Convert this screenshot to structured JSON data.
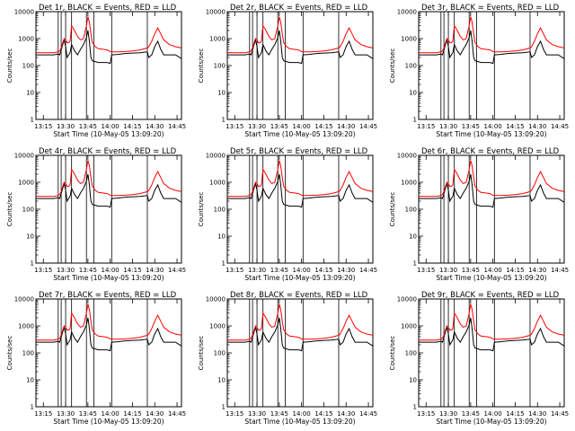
{
  "colors": {
    "background": "#ffffff",
    "events": "#000000",
    "lld": "#ff0000",
    "frame": "#000000"
  },
  "chart_data": [
    {
      "type": "line",
      "title": "Det 1r, BLACK = Events, RED = LLD",
      "det": "1r",
      "xlabel": "Start Time (10-May-05 13:09:20)",
      "ylabel": "Counts/sec",
      "yscale": "log",
      "ylim": [
        1,
        10000
      ],
      "xlim": [
        "13:10",
        "14:48"
      ],
      "xticks": [
        "13:15",
        "13:30",
        "13:45",
        "14:00",
        "14:15",
        "14:30",
        "14:45"
      ],
      "yticks": [
        "1",
        "10",
        "100",
        "1000",
        "10000"
      ],
      "vlines": [
        "13:25",
        "13:27",
        "13:30",
        "13:34",
        "13:44",
        "13:49",
        "14:01",
        "14:25"
      ],
      "series": [
        {
          "name": "Events",
          "color": "#000000"
        },
        {
          "name": "LLD",
          "color": "#ff0000"
        }
      ]
    },
    {
      "type": "line",
      "title": "Det 2r, BLACK = Events, RED = LLD",
      "det": "2r",
      "xlabel": "Start Time (10-May-05 13:09:20)",
      "ylabel": "Counts/sec",
      "yscale": "log",
      "ylim": [
        1,
        10000
      ],
      "xlim": [
        "13:10",
        "14:48"
      ],
      "xticks": [
        "13:15",
        "13:30",
        "13:45",
        "14:00",
        "14:15",
        "14:30",
        "14:45"
      ],
      "yticks": [
        "1",
        "10",
        "100",
        "1000",
        "10000"
      ],
      "vlines": [
        "13:25",
        "13:27",
        "13:30",
        "13:34",
        "13:44",
        "13:49",
        "14:01",
        "14:25"
      ],
      "series": [
        {
          "name": "Events",
          "color": "#000000"
        },
        {
          "name": "LLD",
          "color": "#ff0000"
        }
      ]
    },
    {
      "type": "line",
      "title": "Det 3r, BLACK = Events, RED = LLD",
      "det": "3r",
      "xlabel": "Start Time (10-May-05 13:09:20)",
      "ylabel": "Counts/sec",
      "yscale": "log",
      "ylim": [
        1,
        10000
      ],
      "xlim": [
        "13:10",
        "14:48"
      ],
      "xticks": [
        "13:15",
        "13:30",
        "13:45",
        "14:00",
        "14:15",
        "14:30",
        "14:45"
      ],
      "yticks": [
        "1",
        "10",
        "100",
        "1000",
        "10000"
      ],
      "vlines": [
        "13:25",
        "13:27",
        "13:30",
        "13:34",
        "13:44",
        "13:49",
        "14:01",
        "14:25"
      ],
      "series": [
        {
          "name": "Events",
          "color": "#000000"
        },
        {
          "name": "LLD",
          "color": "#ff0000"
        }
      ]
    },
    {
      "type": "line",
      "title": "Det 4r, BLACK = Events, RED = LLD",
      "det": "4r",
      "xlabel": "Start Time (10-May-05 13:09:20)",
      "ylabel": "Counts/sec",
      "yscale": "log",
      "ylim": [
        1,
        10000
      ],
      "xlim": [
        "13:10",
        "14:48"
      ],
      "xticks": [
        "13:15",
        "13:30",
        "13:45",
        "14:00",
        "14:15",
        "14:30",
        "14:45"
      ],
      "yticks": [
        "1",
        "10",
        "100",
        "1000",
        "10000"
      ],
      "vlines": [
        "13:25",
        "13:27",
        "13:30",
        "13:34",
        "13:44",
        "13:49",
        "14:01",
        "14:25"
      ],
      "series": [
        {
          "name": "Events",
          "color": "#000000"
        },
        {
          "name": "LLD",
          "color": "#ff0000"
        }
      ]
    },
    {
      "type": "line",
      "title": "Det 5r, BLACK = Events, RED = LLD",
      "det": "5r",
      "xlabel": "Start Time (10-May-05 13:09:20)",
      "ylabel": "Counts/sec",
      "yscale": "log",
      "ylim": [
        1,
        10000
      ],
      "xlim": [
        "13:10",
        "14:48"
      ],
      "xticks": [
        "13:15",
        "13:30",
        "13:45",
        "14:00",
        "14:15",
        "14:30",
        "14:45"
      ],
      "yticks": [
        "1",
        "10",
        "100",
        "1000",
        "10000"
      ],
      "vlines": [
        "13:25",
        "13:27",
        "13:30",
        "13:34",
        "13:44",
        "13:49",
        "14:01",
        "14:25"
      ],
      "series": [
        {
          "name": "Events",
          "color": "#000000"
        },
        {
          "name": "LLD",
          "color": "#ff0000"
        }
      ]
    },
    {
      "type": "line",
      "title": "Det 6r, BLACK = Events, RED = LLD",
      "det": "6r",
      "xlabel": "Start Time (10-May-05 13:09:20)",
      "ylabel": "Counts/sec",
      "yscale": "log",
      "ylim": [
        1,
        10000
      ],
      "xlim": [
        "13:10",
        "14:48"
      ],
      "xticks": [
        "13:15",
        "13:30",
        "13:45",
        "14:00",
        "14:15",
        "14:30",
        "14:45"
      ],
      "yticks": [
        "1",
        "10",
        "100",
        "1000",
        "10000"
      ],
      "vlines": [
        "13:25",
        "13:27",
        "13:30",
        "13:34",
        "13:44",
        "13:49",
        "14:01",
        "14:25"
      ],
      "series": [
        {
          "name": "Events",
          "color": "#000000"
        },
        {
          "name": "LLD",
          "color": "#ff0000"
        }
      ]
    },
    {
      "type": "line",
      "title": "Det 7r, BLACK = Events, RED = LLD",
      "det": "7r",
      "xlabel": "Start Time (10-May-05 13:09:20)",
      "ylabel": "Counts/sec",
      "yscale": "log",
      "ylim": [
        1,
        10000
      ],
      "xlim": [
        "13:10",
        "14:48"
      ],
      "xticks": [
        "13:15",
        "13:30",
        "13:45",
        "14:00",
        "14:15",
        "14:30",
        "14:45"
      ],
      "yticks": [
        "1",
        "10",
        "100",
        "1000",
        "10000"
      ],
      "vlines": [
        "13:25",
        "13:27",
        "13:30",
        "13:34",
        "13:44",
        "13:49",
        "14:01",
        "14:25"
      ],
      "series": [
        {
          "name": "Events",
          "color": "#000000"
        },
        {
          "name": "LLD",
          "color": "#ff0000"
        }
      ]
    },
    {
      "type": "line",
      "title": "Det 8r, BLACK = Events, RED = LLD",
      "det": "8r",
      "xlabel": "Start Time (10-May-05 13:09:20)",
      "ylabel": "Counts/sec",
      "yscale": "log",
      "ylim": [
        1,
        10000
      ],
      "xlim": [
        "13:10",
        "14:48"
      ],
      "xticks": [
        "13:15",
        "13:30",
        "13:45",
        "14:00",
        "14:15",
        "14:30",
        "14:45"
      ],
      "yticks": [
        "1",
        "10",
        "100",
        "1000",
        "10000"
      ],
      "vlines": [
        "13:25",
        "13:27",
        "13:30",
        "13:34",
        "13:44",
        "13:49",
        "14:01",
        "14:25"
      ],
      "series": [
        {
          "name": "Events",
          "color": "#000000"
        },
        {
          "name": "LLD",
          "color": "#ff0000"
        }
      ]
    },
    {
      "type": "line",
      "title": "Det 9r, BLACK = Events, RED = LLD",
      "det": "9r",
      "xlabel": "Start Time (10-May-05 13:09:20)",
      "ylabel": "Counts/sec",
      "yscale": "log",
      "ylim": [
        1,
        10000
      ],
      "xlim": [
        "13:10",
        "14:48"
      ],
      "xticks": [
        "13:15",
        "13:30",
        "13:45",
        "14:00",
        "14:15",
        "14:30",
        "14:45"
      ],
      "yticks": [
        "1",
        "10",
        "100",
        "1000",
        "10000"
      ],
      "vlines": [
        "13:25",
        "13:27",
        "13:30",
        "13:34",
        "13:44",
        "13:49",
        "14:01",
        "14:25"
      ],
      "series": [
        {
          "name": "Events",
          "color": "#000000"
        },
        {
          "name": "LLD",
          "color": "#ff0000"
        }
      ]
    }
  ],
  "curve": {
    "time": [
      "13:10",
      "13:20",
      "13:22",
      "13:25",
      "13:26",
      "13:27",
      "13:28",
      "13:29",
      "13:30",
      "13:31",
      "13:32",
      "13:33",
      "13:34",
      "13:36",
      "13:38",
      "13:40",
      "13:42",
      "13:44",
      "13:45",
      "13:46",
      "13:47",
      "13:48",
      "13:50",
      "13:52",
      "13:55",
      "13:58",
      "14:00",
      "14:01",
      "14:05",
      "14:10",
      "14:15",
      "14:20",
      "14:25",
      "14:26",
      "14:28",
      "14:30",
      "14:32",
      "14:34",
      "14:36",
      "14:40",
      "14:44",
      "14:48"
    ],
    "lld": [
      300,
      300,
      300,
      320,
      350,
      450,
      700,
      1000,
      900,
      700,
      700,
      800,
      3000,
      2000,
      1200,
      900,
      1000,
      3000,
      6500,
      4000,
      1500,
      700,
      500,
      420,
      400,
      380,
      330,
      320,
      320,
      330,
      350,
      380,
      450,
      500,
      800,
      1500,
      2500,
      1500,
      900,
      600,
      500,
      450
    ],
    "events": [
      250,
      250,
      250,
      270,
      250,
      380,
      600,
      900,
      500,
      200,
      250,
      300,
      600,
      350,
      250,
      400,
      600,
      1100,
      2000,
      800,
      200,
      150,
      140,
      130,
      130,
      130,
      120,
      250,
      260,
      280,
      290,
      300,
      320,
      200,
      250,
      500,
      800,
      400,
      250,
      250,
      250,
      180
    ]
  }
}
